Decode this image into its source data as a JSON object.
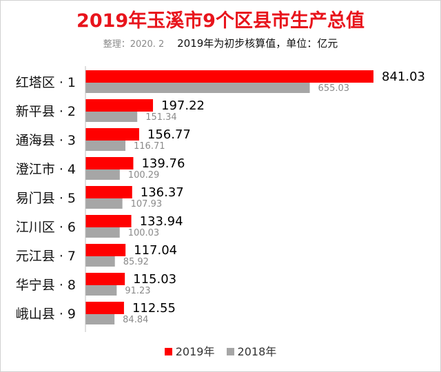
{
  "title": "2019年玉溪市9个区县市生产总值",
  "subtitle_note": "整理：2020. 2",
  "subtitle": "2019年为初步核算值，单位：亿元",
  "colors": {
    "series2019": "#ff0000",
    "series2018": "#a6a6a6"
  },
  "chart_data": {
    "type": "bar",
    "orientation": "horizontal",
    "title": "2019年玉溪市9个区县市生产总值",
    "categories": [
      "红塔区 · 1",
      "新平县 · 2",
      "通海县 · 3",
      "澄江市 · 4",
      "易门县 · 5",
      "江川区 · 6",
      "元江县 · 7",
      "华宁县 · 8",
      "峨山县 · 9"
    ],
    "series": [
      {
        "name": "2019年",
        "values": [
          841.03,
          197.22,
          156.77,
          139.76,
          136.37,
          133.94,
          117.04,
          115.03,
          112.55
        ]
      },
      {
        "name": "2018年",
        "values": [
          655.03,
          151.34,
          116.71,
          100.29,
          107.93,
          100.03,
          85.92,
          91.23,
          84.84
        ]
      }
    ],
    "xlim": [
      0,
      841.03
    ],
    "grid": false,
    "legend_position": "bottom"
  }
}
